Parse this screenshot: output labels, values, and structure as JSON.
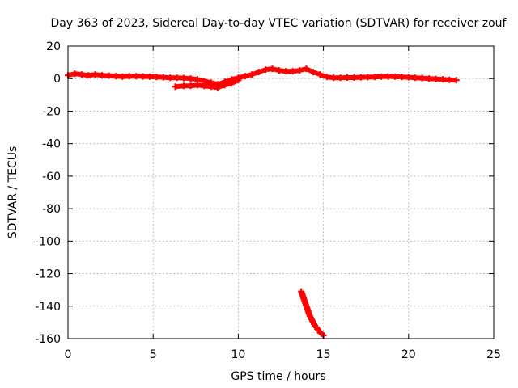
{
  "chart_data": {
    "type": "scatter",
    "title": "Day 363 of 2023, Sidereal Day-to-day VTEC variation (SDTVAR) for receiver zouf",
    "xlabel": "GPS time / hours",
    "ylabel": "SDTVAR / TECUs",
    "xlim": [
      0,
      25
    ],
    "ylim": [
      -160,
      20
    ],
    "xticks": [
      0,
      5,
      10,
      15,
      20,
      25
    ],
    "yticks": [
      20,
      0,
      -20,
      -40,
      -60,
      -80,
      -100,
      -120,
      -140,
      -160
    ],
    "grid": true,
    "legend": "none",
    "marker": "plus",
    "color": "#ff0000",
    "series": [
      {
        "x": [
          0.0,
          0.4,
          0.8,
          1.2,
          1.6,
          2.0,
          2.4,
          2.8,
          3.2,
          3.6,
          4.0,
          4.4,
          4.8,
          5.2,
          5.6,
          6.0,
          6.4,
          6.8,
          7.2,
          7.6,
          8.0,
          8.4,
          8.8,
          9.2,
          9.6,
          10.0,
          10.4,
          10.8,
          11.2,
          11.6,
          12.0,
          12.4,
          12.8,
          13.2,
          13.6,
          14.0,
          14.4,
          14.8,
          15.2,
          15.6,
          16.0,
          16.4,
          16.8,
          17.2,
          17.6,
          18.0,
          18.4,
          18.8,
          19.2,
          19.6,
          20.0,
          20.4,
          20.8,
          21.2,
          21.6,
          22.0,
          22.4,
          22.8
        ],
        "y": [
          2,
          3,
          2.5,
          2,
          2.5,
          2,
          1.8,
          1.5,
          1.2,
          1.5,
          1.5,
          1.3,
          1.2,
          1.0,
          0.8,
          0.5,
          0.5,
          0.3,
          0.0,
          -0.5,
          -1.5,
          -2.5,
          -3.5,
          -2,
          -0.5,
          0.5,
          1.5,
          2.5,
          4,
          5.5,
          6,
          5,
          4.5,
          4.5,
          5,
          6,
          4,
          2.5,
          1.0,
          0.5,
          0.5,
          0.6,
          0.6,
          0.8,
          0.9,
          1.0,
          1.2,
          1.3,
          1.2,
          1.0,
          0.8,
          0.5,
          0.3,
          0.0,
          -0.2,
          -0.5,
          -0.8,
          -1.0
        ]
      },
      {
        "x": [
          6.3,
          6.8,
          7.2,
          7.6,
          8.0,
          8.4,
          8.8,
          9.2,
          9.6,
          10.0
        ],
        "y": [
          -5,
          -4.5,
          -4.5,
          -4,
          -4.5,
          -5,
          -5.5,
          -4,
          -3,
          -1
        ]
      },
      {
        "x": [
          13.7,
          13.8,
          13.9,
          14.0,
          14.1,
          14.2,
          14.3,
          14.4,
          14.5,
          14.6,
          14.7,
          14.8,
          14.9,
          15.0
        ],
        "y": [
          -131,
          -134,
          -137,
          -140,
          -143,
          -146,
          -148,
          -150,
          -152,
          -153,
          -155,
          -156,
          -157,
          -158
        ]
      }
    ]
  }
}
